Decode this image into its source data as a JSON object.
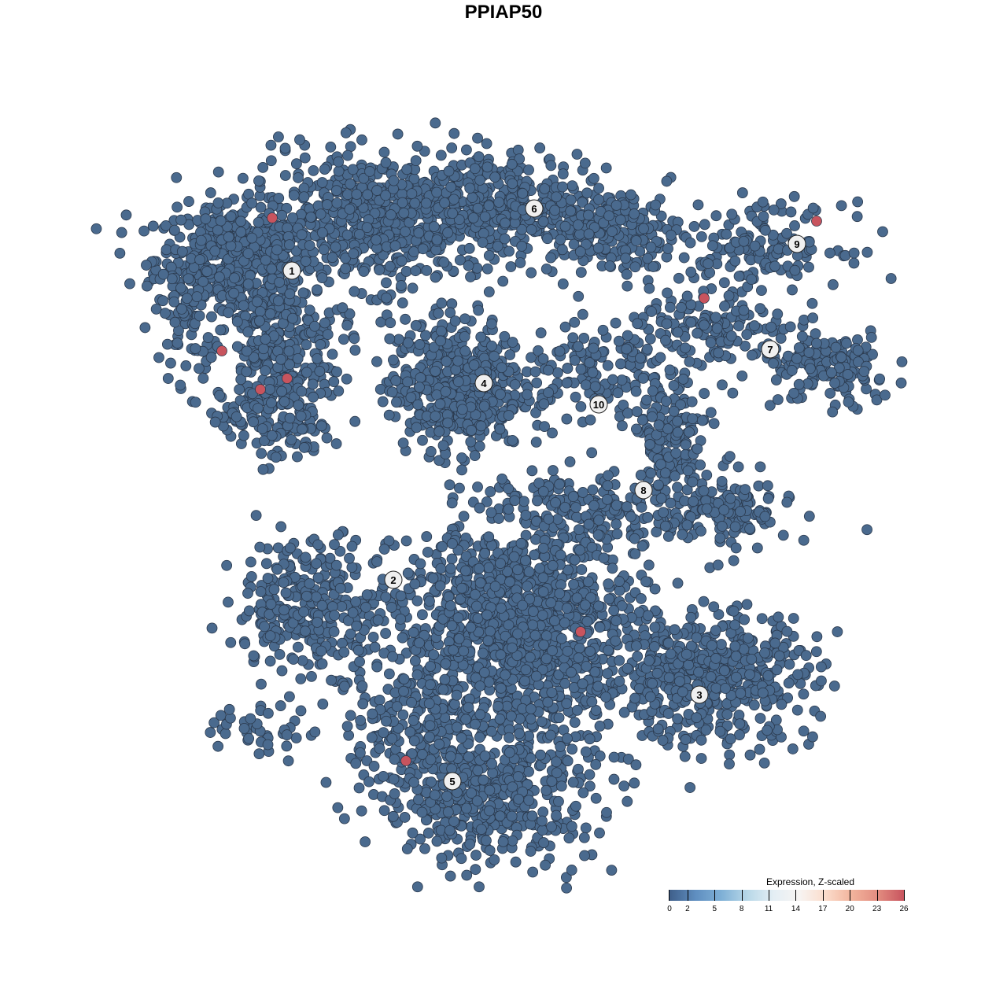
{
  "chart_data": {
    "type": "scatter",
    "title": "PPIAP50",
    "xlabel": "",
    "ylabel": "",
    "xlim": [
      -64,
      64
    ],
    "ylim": [
      -64,
      64
    ],
    "grid": false,
    "axes_visible": false,
    "base_value": 0,
    "colors": {
      "low": "#4A6A8E",
      "high": "#C8545E",
      "point_stroke": "#2B3A4E"
    },
    "clusters": [
      {
        "label": "1",
        "label_pos": [
          -26.9,
          29.6
        ],
        "blobs": [
          [
            -34,
            31,
            6,
            4,
            500
          ],
          [
            -29,
            19,
            5,
            6,
            300
          ],
          [
            -29,
            10,
            4,
            3,
            100
          ],
          [
            -40,
            24,
            2,
            5,
            60
          ]
        ]
      },
      {
        "label": "6",
        "label_pos": [
          3.9,
          37.5
        ],
        "blobs": [
          [
            -16,
            36,
            10,
            5,
            600
          ],
          [
            1,
            38,
            10,
            4,
            350
          ],
          [
            14,
            34,
            5,
            3,
            150
          ]
        ]
      },
      {
        "label": "4",
        "label_pos": [
          -2.5,
          15.3
        ],
        "blobs": [
          [
            -6,
            15,
            5,
            5,
            500
          ]
        ]
      },
      {
        "label": "10",
        "label_pos": [
          12.1,
          12.6
        ],
        "blobs": [
          [
            11,
            17,
            5,
            4,
            120
          ]
        ]
      },
      {
        "label": "7",
        "label_pos": [
          33.9,
          19.6
        ],
        "blobs": [
          [
            26,
            22,
            6,
            3,
            150
          ],
          [
            41,
            17,
            5,
            3,
            150
          ]
        ]
      },
      {
        "label": "9",
        "label_pos": [
          37.3,
          33.0
        ],
        "blobs": [
          [
            33,
            33,
            6,
            3,
            150
          ]
        ]
      },
      {
        "label": "8",
        "label_pos": [
          17.8,
          1.7
        ],
        "blobs": [
          [
            21,
            8,
            3,
            5,
            150
          ],
          [
            28,
            -1,
            5,
            3,
            150
          ],
          [
            11,
            -1,
            6,
            3,
            150
          ]
        ]
      },
      {
        "label": "2",
        "label_pos": [
          -14.0,
          -9.7
        ],
        "blobs": [
          [
            -24,
            -13,
            6,
            5,
            300
          ],
          [
            -31,
            -29,
            4,
            2,
            40
          ]
        ]
      },
      {
        "label": "3",
        "label_pos": [
          24.9,
          -24.3
        ],
        "blobs": [
          [
            26,
            -22,
            8,
            5,
            500
          ]
        ]
      },
      {
        "label": "5",
        "label_pos": [
          -6.5,
          -35.3
        ],
        "blobs": [
          [
            2,
            -16,
            9,
            8,
            1200
          ],
          [
            -2,
            -37,
            8,
            5,
            500
          ],
          [
            -12,
            -28,
            4,
            5,
            150
          ]
        ]
      }
    ],
    "high_points": [
      {
        "x": -29.4,
        "y": 36.3,
        "value": 26
      },
      {
        "x": -35.8,
        "y": 19.4,
        "value": 26
      },
      {
        "x": -30.9,
        "y": 14.5,
        "value": 26
      },
      {
        "x": -27.5,
        "y": 15.9,
        "value": 26
      },
      {
        "x": 25.5,
        "y": 26.1,
        "value": 26
      },
      {
        "x": 39.8,
        "y": 35.9,
        "value": 26
      },
      {
        "x": 9.8,
        "y": -16.3,
        "value": 26
      },
      {
        "x": -12.4,
        "y": -32.7,
        "value": 26
      }
    ],
    "legend": {
      "title": "Expression, Z-scaled",
      "position": "bottom-right",
      "ticks": [
        0,
        2,
        5,
        8,
        11,
        14,
        17,
        20,
        23,
        26
      ],
      "tick_labels": [
        "0",
        "2",
        "5",
        "8",
        "11",
        "14",
        "17",
        "20",
        "23",
        "26"
      ],
      "range": [
        0,
        26
      ],
      "gradient": [
        "#3F5F8A",
        "#5F8EC0",
        "#7FB0D6",
        "#B8D8E8",
        "#E4EEF4",
        "#F7F4F2",
        "#FBDCCB",
        "#F2B39C",
        "#E28C80",
        "#C8545E"
      ]
    }
  }
}
